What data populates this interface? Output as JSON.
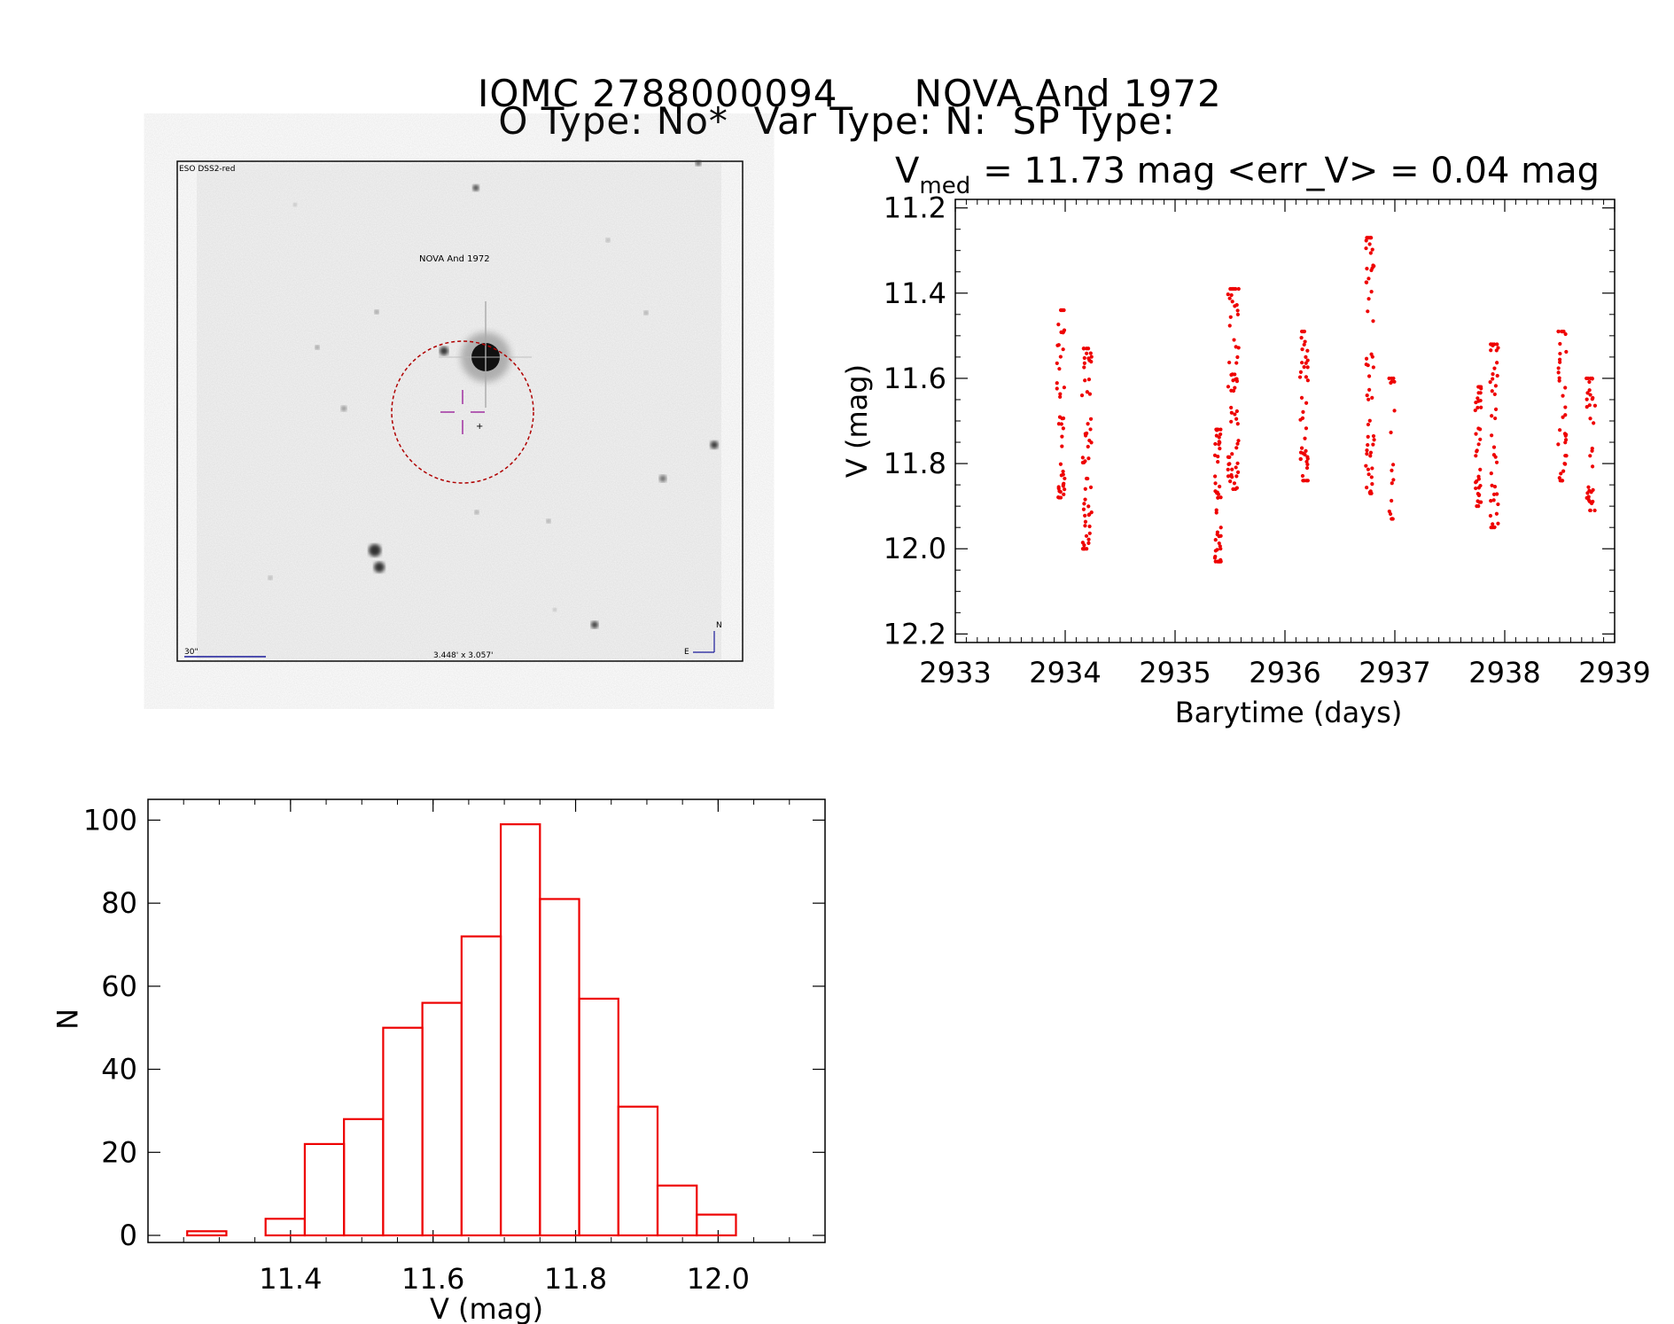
{
  "header": {
    "star_id": "IOMC 2788000094",
    "star_name": "NOVA And 1972",
    "type_line": "O Type: No*  Var Type: N:  SP Type:"
  },
  "finder_image": {
    "survey_label": "ESO DSS2-red",
    "target_label": "NOVA And 1972",
    "scale_label": "30\"",
    "field_label": "3.448' x 3.057'",
    "north_label": "N",
    "east_label": "E"
  },
  "stats": {
    "v_symbol": "V",
    "v_subscript": "med",
    "text": "= 11.73 mag  <err_V> = 0.04 mag"
  },
  "chart_data": [
    {
      "type": "scatter",
      "title": "V_med = 11.73 mag <err_V> = 0.04 mag",
      "xlabel": "Barytime (days)",
      "ylabel": "V (mag)",
      "xlim": [
        2933,
        2939
      ],
      "ylim": [
        12.22,
        11.18
      ],
      "y_inverted": true,
      "x_ticks": [
        2933,
        2934,
        2935,
        2936,
        2937,
        2938,
        2939
      ],
      "y_ticks": [
        "11.2",
        "11.4",
        "11.6",
        "11.8",
        "12.0",
        "12.2"
      ],
      "color": "#ee0000",
      "clusters": [
        {
          "x": [
            2933.91,
            2934.01
          ],
          "vmin": 11.44,
          "vmax": 11.88,
          "n": 45
        },
        {
          "x": [
            2934.13,
            2934.26
          ],
          "vmin": 11.53,
          "vmax": 12.0,
          "n": 55
        },
        {
          "x": [
            2935.35,
            2935.43
          ],
          "vmin": 11.72,
          "vmax": 12.03,
          "n": 48
        },
        {
          "x": [
            2935.46,
            2935.6
          ],
          "vmin": 11.39,
          "vmax": 11.86,
          "n": 62
        },
        {
          "x": [
            2936.12,
            2936.23
          ],
          "vmin": 11.49,
          "vmax": 11.84,
          "n": 42
        },
        {
          "x": [
            2936.72,
            2936.83
          ],
          "vmin": 11.27,
          "vmax": 11.87,
          "n": 52
        },
        {
          "x": [
            2936.93,
            2937.01
          ],
          "vmin": 11.6,
          "vmax": 11.93,
          "n": 16
        },
        {
          "x": [
            2937.72,
            2937.8
          ],
          "vmin": 11.62,
          "vmax": 11.9,
          "n": 36
        },
        {
          "x": [
            2937.85,
            2937.96
          ],
          "vmin": 11.52,
          "vmax": 11.95,
          "n": 40
        },
        {
          "x": [
            2938.47,
            2938.58
          ],
          "vmin": 11.49,
          "vmax": 11.84,
          "n": 38
        },
        {
          "x": [
            2938.72,
            2938.84
          ],
          "vmin": 11.6,
          "vmax": 11.91,
          "n": 34
        }
      ]
    },
    {
      "type": "histogram",
      "xlabel": "V (mag)",
      "ylabel": "N",
      "xlim": [
        11.2,
        12.15
      ],
      "ylim": [
        0,
        105
      ],
      "x_ticks": [
        "11.4",
        "11.6",
        "11.8",
        "12.0"
      ],
      "y_ticks": [
        "0",
        "20",
        "40",
        "60",
        "80",
        "100"
      ],
      "bin_edges": [
        11.255,
        11.31,
        11.365,
        11.42,
        11.475,
        11.53,
        11.585,
        11.64,
        11.695,
        11.75,
        11.805,
        11.86,
        11.915,
        11.97,
        12.025
      ],
      "counts": [
        1,
        0,
        4,
        22,
        28,
        50,
        56,
        72,
        99,
        81,
        57,
        31,
        12,
        5
      ],
      "color": "#ee0000"
    }
  ]
}
